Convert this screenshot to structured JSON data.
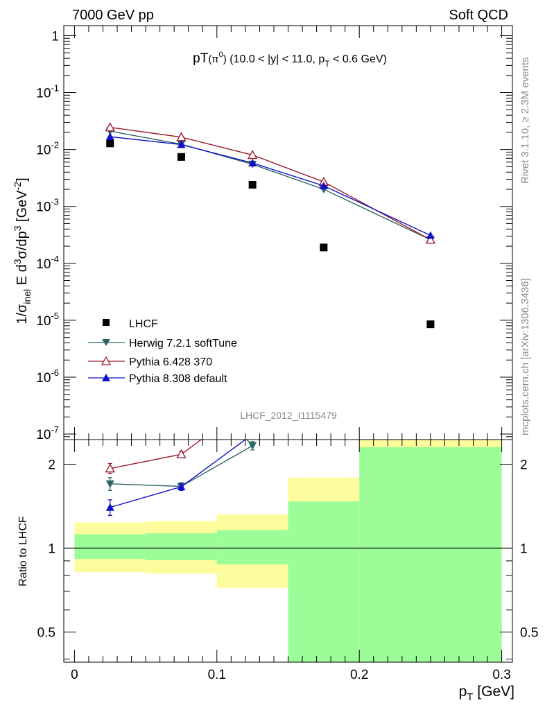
{
  "header": {
    "left": "7000 GeV pp",
    "right": "Soft QCD"
  },
  "side_labels": {
    "rivet": "Rivet 3.1.10, ≥ 2.3M events",
    "mcplots": "mcplots.cern.ch [arXiv:1306.3436]"
  },
  "analysis_id": "LHCF_2012_I1115479",
  "colors": {
    "lhcf": "#000000",
    "herwig": "#2f6464",
    "pythia6": "#9b1c2c",
    "pythia8": "#1010c8",
    "band_green": "#9cfc98",
    "band_yellow": "#fcfc9c"
  },
  "chart_data": [
    {
      "type": "scatter",
      "title": {
        "main": "pT",
        "particle": "(π",
        "particle_sup": "0",
        "particle_close": ")",
        "cuts_a": "(10.0 < |y| < 11.0, p",
        "cuts_sub": "T",
        "cuts_b": " < 0.6 GeV)"
      },
      "ylabel": {
        "p1": "1/σ",
        "p2": "inel",
        "p3": " E d",
        "p4": "3",
        "p5": "σ/dp",
        "p6": "3",
        "p7": " [GeV",
        "p8": "-2",
        "p9": "]"
      },
      "yscale": "log",
      "ylim": [
        8e-08,
        1.5
      ],
      "xlim": [
        -0.0075,
        0.3075
      ],
      "yticks": [
        {
          "value": 1,
          "label": "1"
        },
        {
          "value": 0.1,
          "base": "10",
          "exp": "-1"
        },
        {
          "value": 0.01,
          "base": "10",
          "exp": "-2"
        },
        {
          "value": 0.001,
          "base": "10",
          "exp": "-3"
        },
        {
          "value": 0.0001,
          "base": "10",
          "exp": "-4"
        },
        {
          "value": 1e-05,
          "base": "10",
          "exp": "-5"
        },
        {
          "value": 1e-06,
          "base": "10",
          "exp": "-6"
        },
        {
          "value": 1e-07,
          "base": "10",
          "exp": "-7"
        }
      ],
      "legend_position": "bottom-left",
      "series": [
        {
          "name": "LHCF",
          "marker": "square",
          "line": false,
          "x": [
            0.025,
            0.075,
            0.125,
            0.175,
            0.25
          ],
          "y": [
            0.0128,
            0.0074,
            0.0024,
            0.00019,
            8.5e-06
          ]
        },
        {
          "name": "Herwig 7.2.1 softTune",
          "marker": "triangle-down",
          "line": true,
          "x": [
            0.025,
            0.075,
            0.125,
            0.175,
            0.25
          ],
          "y": [
            0.021,
            0.0124,
            0.0055,
            0.002,
            0.00026
          ]
        },
        {
          "name": "Pythia 6.428 370",
          "marker": "triangle-up-open",
          "line": true,
          "x": [
            0.025,
            0.075,
            0.125,
            0.175,
            0.25
          ],
          "y": [
            0.0245,
            0.0165,
            0.008,
            0.0027,
            0.00026
          ]
        },
        {
          "name": "Pythia 8.308 default",
          "marker": "triangle-up",
          "line": true,
          "x": [
            0.025,
            0.075,
            0.125,
            0.175,
            0.25
          ],
          "y": [
            0.0168,
            0.0122,
            0.0058,
            0.0023,
            0.00031
          ]
        }
      ]
    },
    {
      "type": "scatter",
      "ylabel": "Ratio to LHCF",
      "xlabel": {
        "main": "p",
        "sub": "T",
        "unit": " [GeV]"
      },
      "yscale": "log",
      "ylim": [
        0.39,
        2.45
      ],
      "xlim": [
        -0.0075,
        0.3075
      ],
      "xticks": [
        {
          "value": 0,
          "label": "0"
        },
        {
          "value": 0.1,
          "label": "0.1"
        },
        {
          "value": 0.2,
          "label": "0.2"
        },
        {
          "value": 0.3,
          "label": "0.3"
        }
      ],
      "yticks": [
        {
          "value": 0.5,
          "label": "0.5"
        },
        {
          "value": 1,
          "label": "1"
        },
        {
          "value": 2,
          "label": "2"
        }
      ],
      "reference_line": 1,
      "uncertainty_bands": [
        {
          "x0": 0.0,
          "x1": 0.05,
          "green": [
            0.915,
            1.12
          ],
          "yellow": [
            0.82,
            1.235
          ]
        },
        {
          "x0": 0.05,
          "x1": 0.1,
          "green": [
            0.905,
            1.13
          ],
          "yellow": [
            0.81,
            1.25
          ]
        },
        {
          "x0": 0.1,
          "x1": 0.15,
          "green": [
            0.875,
            1.16
          ],
          "yellow": [
            0.72,
            1.32
          ]
        },
        {
          "x0": 0.15,
          "x1": 0.2,
          "green": [
            0.39,
            1.47
          ],
          "yellow": [
            0.39,
            1.79
          ]
        },
        {
          "x0": 0.2,
          "x1": 0.3,
          "green": [
            0.39,
            2.3
          ],
          "yellow": [
            0.39,
            2.45
          ]
        }
      ],
      "series": [
        {
          "name": "Herwig 7.2.1 softTune",
          "marker": "triangle-down",
          "x": [
            0.025,
            0.075,
            0.125
          ],
          "y": [
            1.7,
            1.665,
            2.33
          ],
          "err": [
            0.09,
            0.05,
            0.08
          ],
          "line_to_edge": {
            "x": 0.121,
            "y": 2.45
          }
        },
        {
          "name": "Pythia 6.428 370",
          "marker": "triangle-up-open",
          "x": [
            0.025,
            0.075
          ],
          "y": [
            1.93,
            2.17
          ],
          "err": [
            0.08,
            0.05
          ],
          "line_to_edge": {
            "x": 0.089,
            "y": 2.45
          }
        },
        {
          "name": "Pythia 8.308 default",
          "marker": "triangle-up",
          "x": [
            0.025,
            0.075
          ],
          "y": [
            1.4,
            1.66
          ],
          "err": [
            0.09,
            0.05
          ],
          "line_to_edge": {
            "x": 0.12,
            "y": 2.45
          }
        }
      ]
    }
  ]
}
